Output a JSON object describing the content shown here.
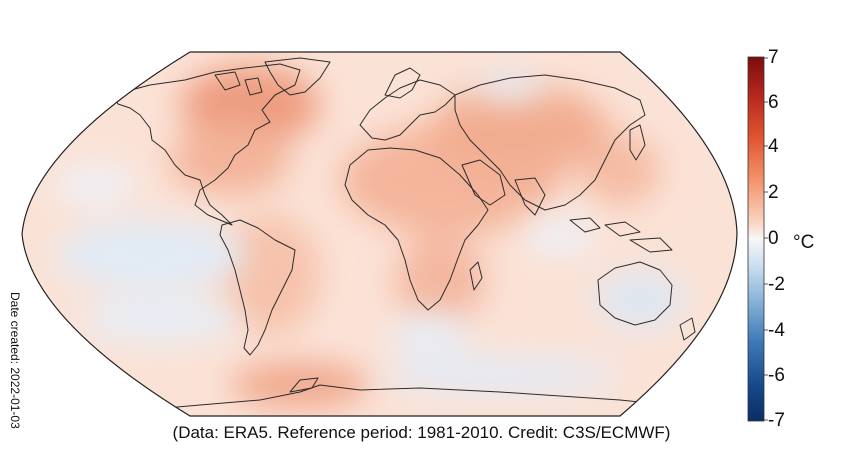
{
  "map": {
    "projection": "robinson",
    "colors": {
      "ocean_base": "#fbe2d6",
      "warm_mid": "#f6b9a0",
      "warm_strong": "#e98a6c",
      "cool_light": "#e4ecf6",
      "cool_mid": "#cfdcee",
      "coastline": "#2b2b2b",
      "frame": "#222222"
    },
    "regions": [
      {
        "name": "Canadian Arctic",
        "anomaly": 3
      },
      {
        "name": "Eastern Pacific",
        "anomaly": -1
      },
      {
        "name": "Southern Ocean",
        "anomaly": -1
      },
      {
        "name": "Australia",
        "anomaly": -1
      },
      {
        "name": "North Africa and Middle East",
        "anomaly": 2
      },
      {
        "name": "Eastern Siberia",
        "anomaly": -0.5
      }
    ]
  },
  "colorbar": {
    "min": -7,
    "max": 7,
    "unit": "°C",
    "ticks": [
      "7",
      "6",
      "4",
      "2",
      "0",
      "-2",
      "-4",
      "-6",
      "-7"
    ],
    "colors": [
      "#7a0d0d",
      "#b3261e",
      "#e0542f",
      "#f49a73",
      "#f9d2c0",
      "#f7f7f7",
      "#cddff0",
      "#8fb8db",
      "#3f7ab8",
      "#164a8c",
      "#0b2d66"
    ]
  },
  "annotations": {
    "date_created": "Date created: 2022-01-03",
    "caption": "(Data: ERA5.  Reference period: 1981-2010.  Credit: C3S/ECMWF)"
  }
}
